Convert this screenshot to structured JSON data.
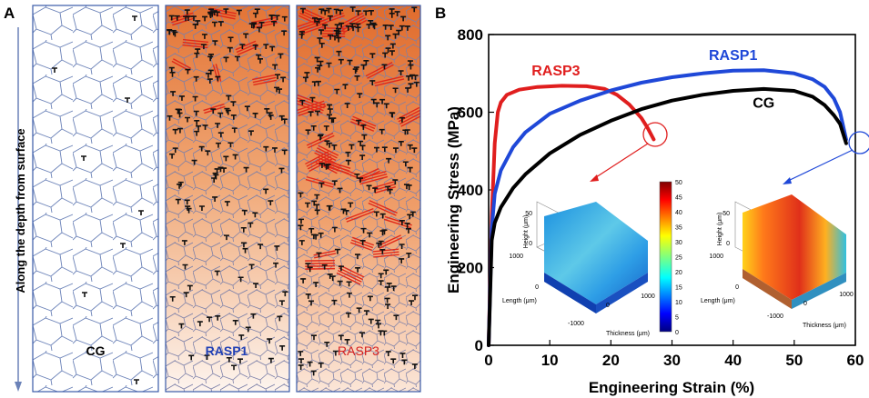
{
  "panel_a": {
    "label": "A",
    "side_label": "Along the depth from surface",
    "columns": [
      {
        "name": "CG",
        "color": "#111111"
      },
      {
        "name": "RASP1",
        "color": "#1f3fb5"
      },
      {
        "name": "RASP3",
        "color": "#d62020"
      }
    ]
  },
  "panel_b": {
    "label": "B"
  },
  "colors": {
    "cg": "#000000",
    "rasp1": "#1f48d8",
    "rasp3": "#e01e1e",
    "grain_line": "#6b82b8",
    "orange": "#e9874e",
    "twin": "#e02a1a"
  },
  "chart_data": {
    "type": "line",
    "title": "",
    "xlabel": "Engineering Strain (%)",
    "ylabel": "Engineering Stress (MPa)",
    "xlim": [
      0,
      60
    ],
    "ylim": [
      0,
      800
    ],
    "xticks": [
      0,
      10,
      20,
      30,
      40,
      50,
      60
    ],
    "yticks": [
      0,
      200,
      400,
      600,
      800
    ],
    "series": [
      {
        "name": "RASP3",
        "color": "#e01e1e",
        "x": [
          0,
          0.5,
          1,
          1.5,
          2,
          3,
          5,
          8,
          12,
          16,
          19,
          21,
          23,
          25,
          26,
          27
        ],
        "y": [
          0,
          330,
          520,
          600,
          625,
          645,
          658,
          665,
          668,
          667,
          660,
          645,
          620,
          585,
          560,
          530
        ]
      },
      {
        "name": "RASP1",
        "color": "#1f48d8",
        "x": [
          0,
          0.5,
          1,
          2,
          4,
          6,
          10,
          15,
          20,
          25,
          30,
          35,
          40,
          45,
          50,
          53,
          55,
          56.5,
          57.5,
          58.5
        ],
        "y": [
          0,
          300,
          390,
          450,
          510,
          548,
          596,
          630,
          656,
          676,
          690,
          700,
          707,
          708,
          700,
          685,
          665,
          635,
          600,
          530
        ]
      },
      {
        "name": "CG",
        "color": "#000000",
        "x": [
          0,
          0.5,
          1,
          2,
          4,
          6,
          10,
          15,
          20,
          25,
          30,
          35,
          40,
          45,
          50,
          53,
          55,
          56.5,
          57.5,
          58.5
        ],
        "y": [
          0,
          270,
          315,
          355,
          405,
          440,
          494,
          542,
          578,
          608,
          630,
          645,
          655,
          660,
          655,
          640,
          618,
          592,
          570,
          520
        ]
      }
    ],
    "annotations": [
      {
        "text": "RASP3",
        "x": 11,
        "y": 695,
        "color": "#e01e1e"
      },
      {
        "text": "RASP1",
        "x": 40,
        "y": 735,
        "color": "#1f48d8"
      },
      {
        "text": "CG",
        "x": 45,
        "y": 612,
        "color": "#000000"
      }
    ]
  },
  "insets": [
    {
      "height_label": "Height (μm)",
      "length_label": "Length (μm)",
      "thickness_label": "Thickness (μm)",
      "height_ticks": [
        "50",
        "0"
      ],
      "length_ticks": [
        "1000",
        "0"
      ],
      "thickness_ticks": [
        "-1000",
        "0",
        "1000"
      ]
    },
    {
      "height_label": "Height (μm)",
      "length_label": "Length (μm)",
      "thickness_label": "Thickness (μm)",
      "height_ticks": [
        "50",
        "0"
      ],
      "length_ticks": [
        "1000",
        "0"
      ],
      "thickness_ticks": [
        "-1000",
        "0",
        "1000"
      ]
    }
  ],
  "colorbar": {
    "ticks": [
      "50",
      "45",
      "40",
      "35",
      "30",
      "25",
      "20",
      "15",
      "10",
      "5",
      "0"
    ]
  }
}
